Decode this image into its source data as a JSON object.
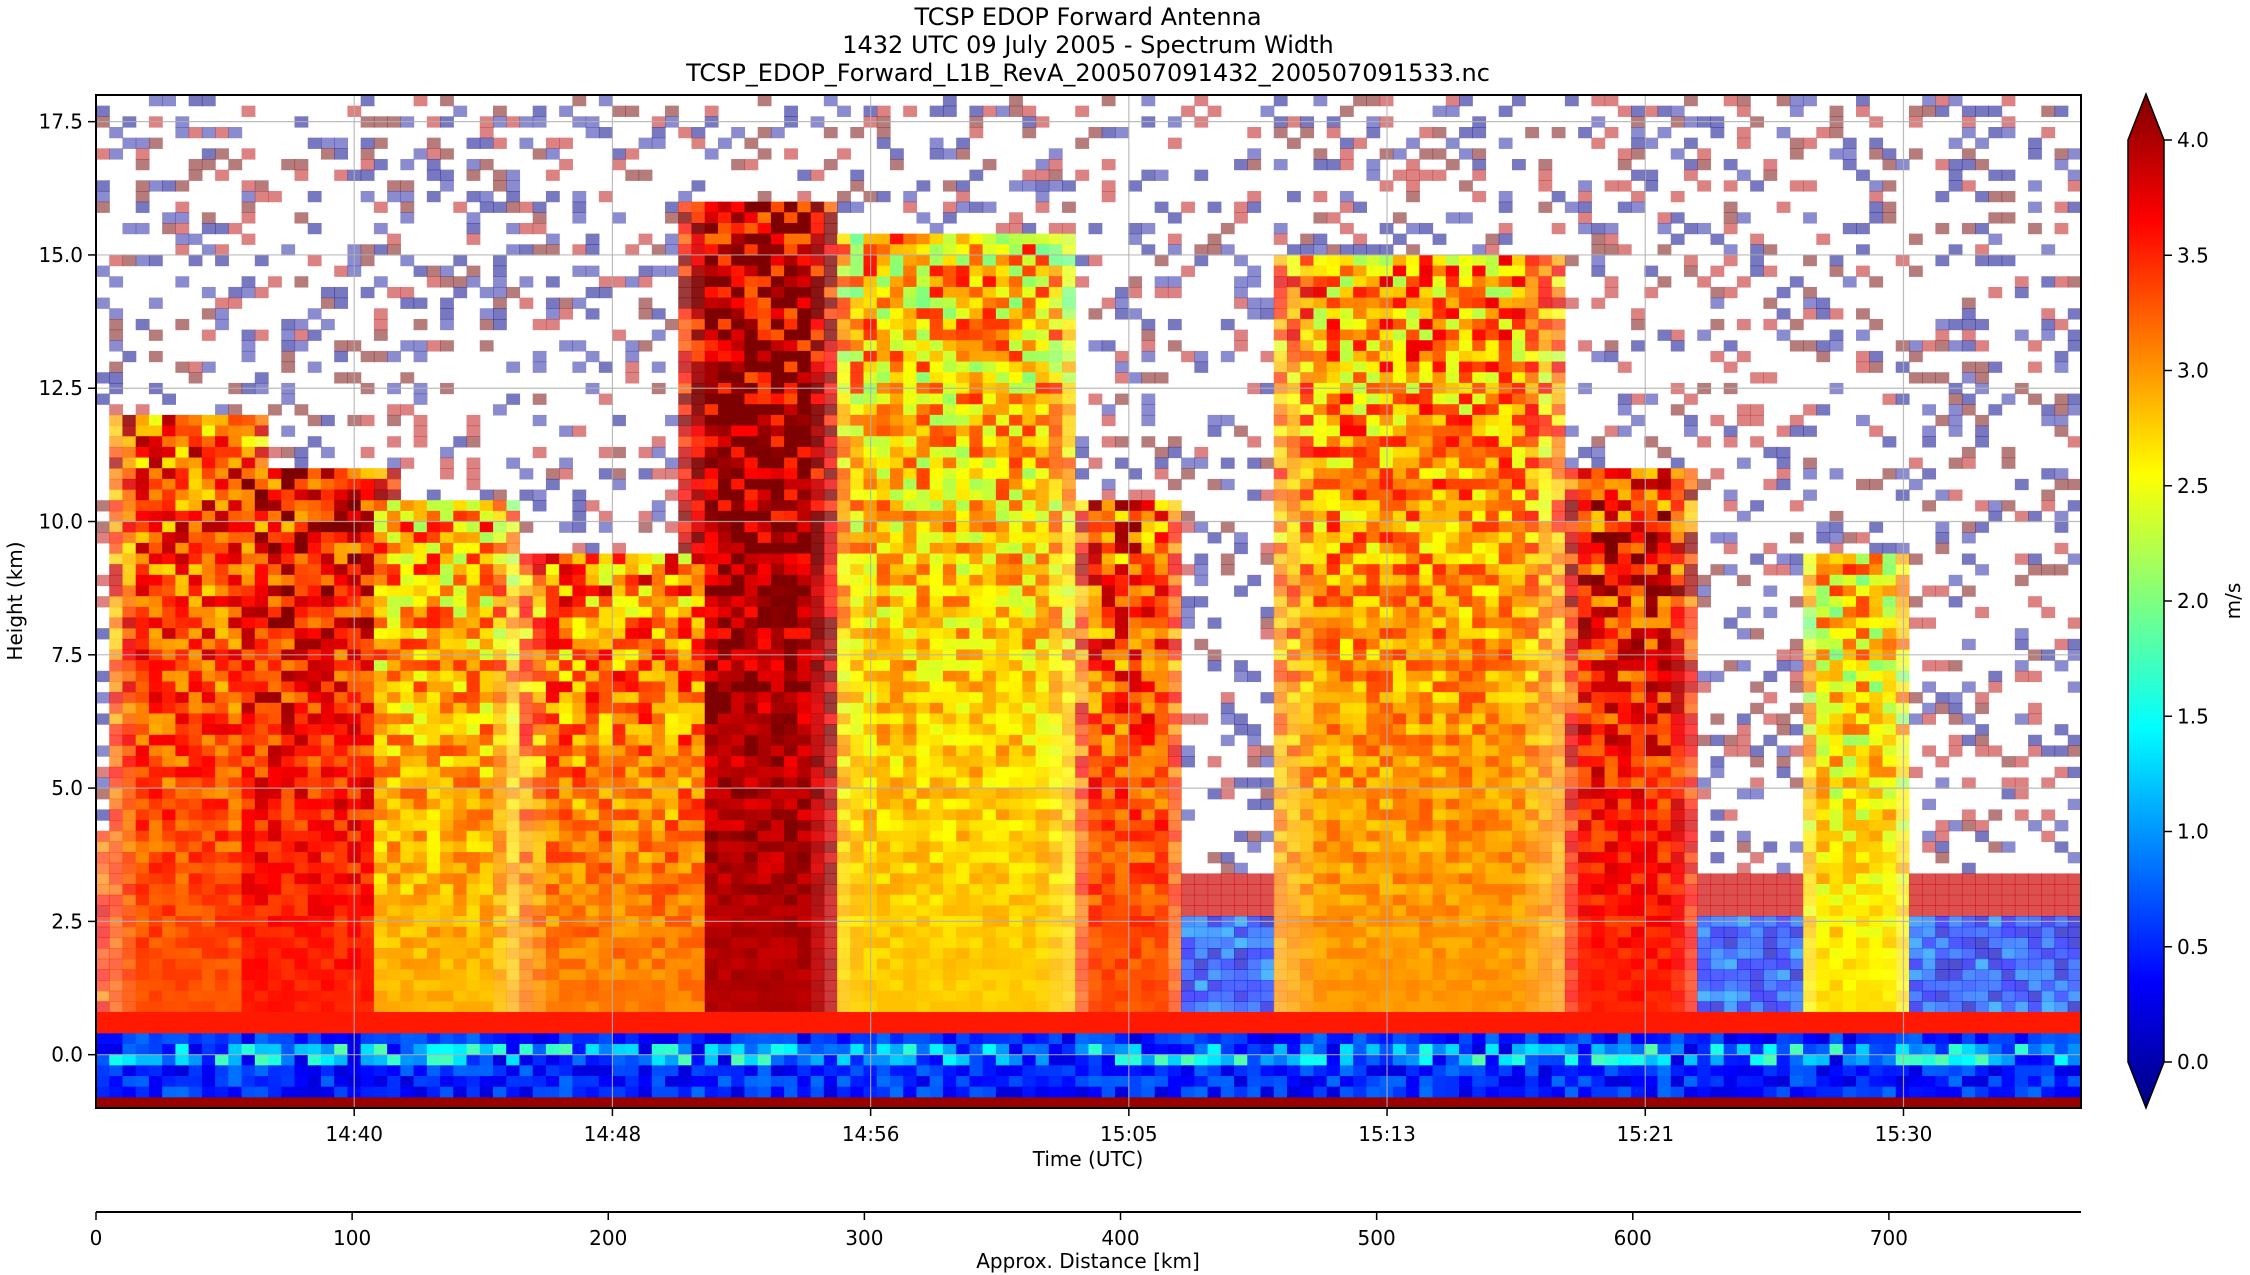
{
  "title": {
    "line1": "TCSP EDOP Forward Antenna",
    "line2": "1432 UTC 09 July 2005 - Spectrum Width",
    "line3": "TCSP_EDOP_Forward_L1B_RevA_200507091432_200507091533.nc"
  },
  "colors": {
    "jet": [
      "#00007f",
      "#0000ff",
      "#007fff",
      "#00ffff",
      "#7fff7f",
      "#ffff00",
      "#ff7f00",
      "#ff0000",
      "#7f0000"
    ],
    "noise": [
      "#0a0a8c",
      "#7a1010",
      "#c01c1c",
      "#2c2ca8"
    ]
  },
  "chart_data": {
    "type": "heatmap",
    "xlabel": "Time (UTC)",
    "ylabel": "Height (km)",
    "x_ticks": [
      "14:40",
      "14:48",
      "14:56",
      "15:05",
      "15:13",
      "15:21",
      "15:30"
    ],
    "x_tick_minutes": [
      8,
      16,
      24,
      32,
      40,
      48,
      56
    ],
    "x_range_minutes": [
      0,
      61.5
    ],
    "y_ticks": [
      0.0,
      2.5,
      5.0,
      7.5,
      10.0,
      12.5,
      15.0,
      17.5
    ],
    "ylim": [
      -1.0,
      18.0
    ],
    "grid": true,
    "colorbar": {
      "label": "m/s",
      "range": [
        0.0,
        4.0
      ],
      "ticks": [
        0.0,
        0.5,
        1.0,
        1.5,
        2.0,
        2.5,
        3.0,
        3.5,
        4.0
      ],
      "colormap": "jet",
      "extend": "both"
    },
    "secondary_x_axis": {
      "label": "Approx. Distance [km]",
      "ticks": [
        0,
        100,
        200,
        300,
        400,
        500,
        600,
        700
      ],
      "range": [
        0,
        775
      ]
    },
    "convective_cells": [
      {
        "center_min": 3.0,
        "top_km": 12.0,
        "width_min": 2.5,
        "sw": 3.2
      },
      {
        "center_min": 6.5,
        "top_km": 11.0,
        "width_min": 3.0,
        "sw": 3.4
      },
      {
        "center_min": 10.5,
        "top_km": 10.5,
        "width_min": 2.5,
        "sw": 2.8
      },
      {
        "center_min": 16.5,
        "top_km": 9.5,
        "width_min": 3.5,
        "sw": 3.0
      },
      {
        "center_min": 20.5,
        "top_km": 16.0,
        "width_min": 2.5,
        "sw": 3.8
      },
      {
        "center_min": 26.5,
        "top_km": 15.5,
        "width_min": 4.0,
        "sw": 2.7
      },
      {
        "center_min": 32.0,
        "top_km": 10.5,
        "width_min": 1.5,
        "sw": 3.2
      },
      {
        "center_min": 41.0,
        "top_km": 15.0,
        "width_min": 4.5,
        "sw": 2.9
      },
      {
        "center_min": 47.5,
        "top_km": 11.0,
        "width_min": 2.0,
        "sw": 3.4
      },
      {
        "center_min": 54.5,
        "top_km": 9.5,
        "width_min": 1.5,
        "sw": 2.6
      }
    ]
  }
}
